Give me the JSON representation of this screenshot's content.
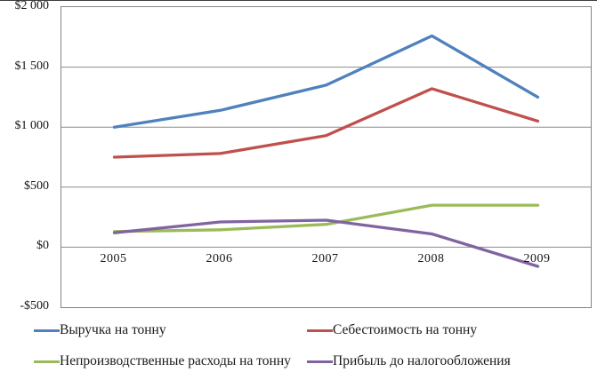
{
  "chart_data": {
    "type": "line",
    "title": "",
    "xlabel": "",
    "ylabel": "",
    "categories": [
      "2005",
      "2006",
      "2007",
      "2008",
      "2009"
    ],
    "series": [
      {
        "key": "revenue-per-ton",
        "name": "Выручка на тонну",
        "color": "#4F81BD",
        "values": [
          1000,
          1140,
          1350,
          1760,
          1250
        ]
      },
      {
        "key": "cost-per-ton",
        "name": "Себестоимость на тонну",
        "color": "#C0504D",
        "values": [
          750,
          780,
          930,
          1320,
          1050
        ]
      },
      {
        "key": "nonprod-expenses",
        "name": "Непроизводственные расходы на тонну",
        "color": "#9BBB59",
        "values": [
          130,
          145,
          190,
          350,
          350
        ]
      },
      {
        "key": "pretax-profit",
        "name": "Прибыль до налогообложения",
        "color": "#8064A2",
        "values": [
          120,
          210,
          225,
          110,
          -160
        ]
      }
    ],
    "ylim": [
      -500,
      2000
    ],
    "yticks": [
      {
        "label": "$2 000",
        "value": 2000
      },
      {
        "label": "$1 500",
        "value": 1500
      },
      {
        "label": "$1 000",
        "value": 1000
      },
      {
        "label": "$500",
        "value": 500
      },
      {
        "label": "$0",
        "value": 0
      },
      {
        "label": "-$500",
        "value": -500
      }
    ],
    "grid": true,
    "gridline_color": "#8c8c8c",
    "plot_border_color": "#848484",
    "legend_position": "bottom",
    "legend_columns": 2
  }
}
